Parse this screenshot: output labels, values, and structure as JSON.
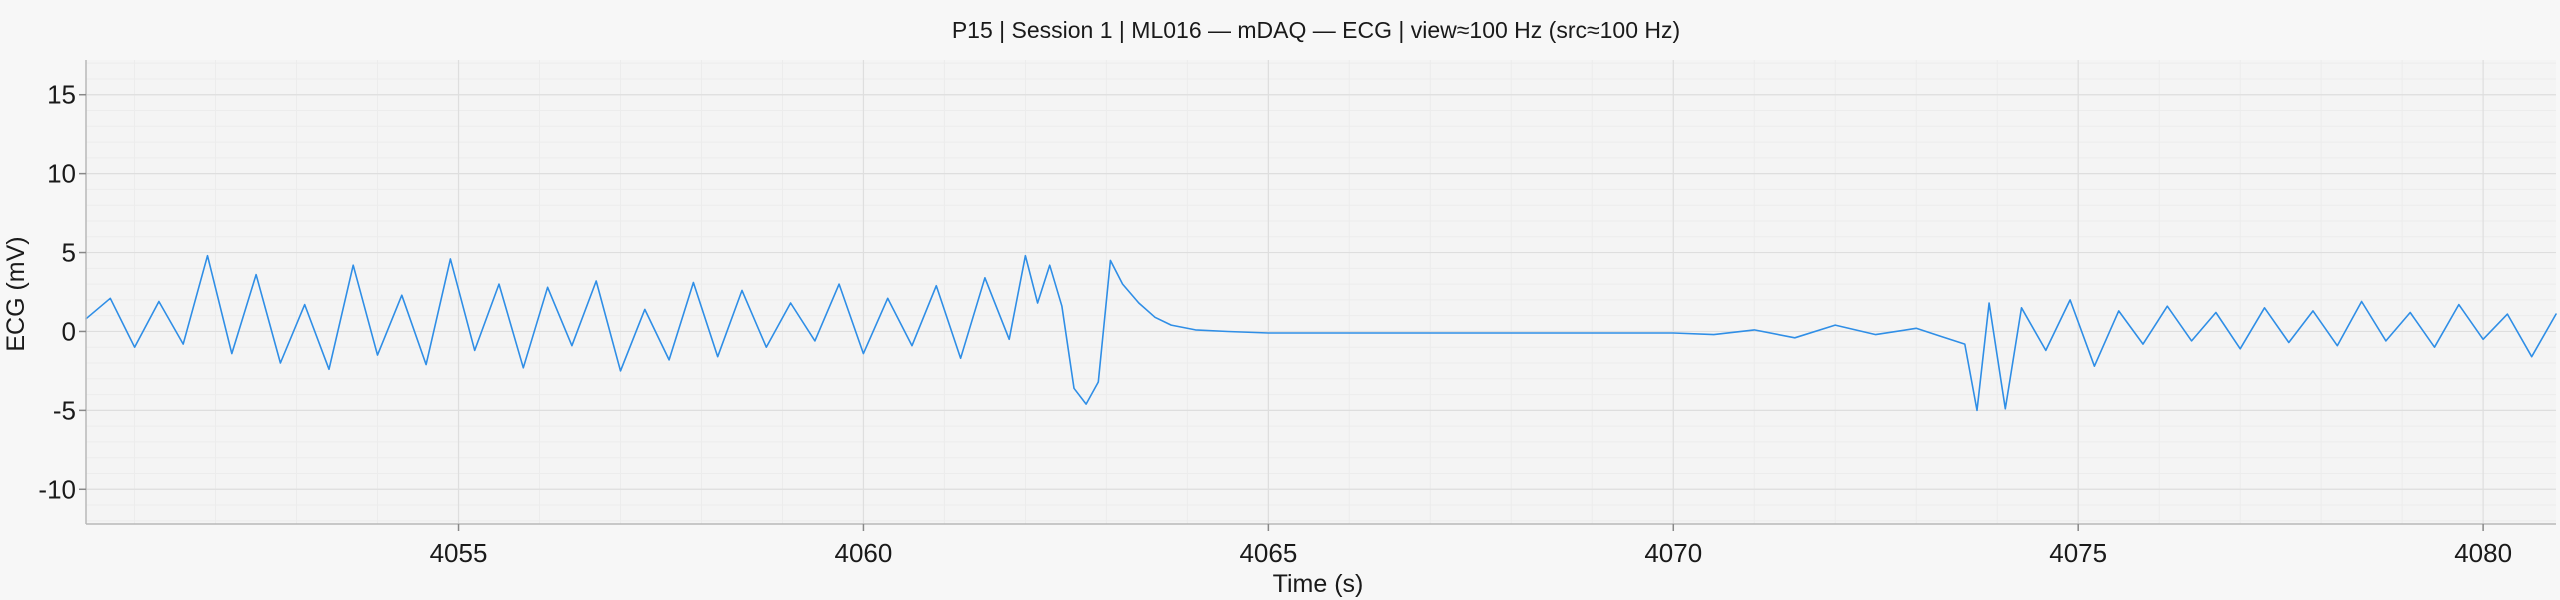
{
  "chart_data": {
    "type": "line",
    "title": "P15 | Session 1 | ML016 — mDAQ — ECG | view≈100 Hz (src≈100 Hz)",
    "xlabel": "Time (s)",
    "ylabel": "ECG (mV)",
    "xlim": [
      4050.4,
      4080.9
    ],
    "ylim": [
      -12.2,
      17.2
    ],
    "x_ticks": [
      4055,
      4060,
      4065,
      4070,
      4075,
      4080
    ],
    "y_ticks": [
      -10,
      -5,
      0,
      5,
      10,
      15
    ],
    "grid": true,
    "legend": "none",
    "sample_rate_hz": 100,
    "series": [
      {
        "color": "#2f8ee6",
        "x": [
          4050.4,
          4050.7,
          4051.0,
          4051.3,
          4051.6,
          4051.9,
          4052.2,
          4052.5,
          4052.8,
          4053.1,
          4053.4,
          4053.7,
          4054.0,
          4054.3,
          4054.6,
          4054.9,
          4055.2,
          4055.5,
          4055.8,
          4056.1,
          4056.4,
          4056.7,
          4057.0,
          4057.3,
          4057.6,
          4057.9,
          4058.2,
          4058.5,
          4058.8,
          4059.1,
          4059.4,
          4059.7,
          4060.0,
          4060.3,
          4060.6,
          4060.9,
          4061.2,
          4061.5,
          4061.8,
          4062.0,
          4062.15,
          4062.3,
          4062.45,
          4062.6,
          4062.75,
          4062.9,
          4063.05,
          4063.2,
          4063.4,
          4063.6,
          4063.8,
          4064.1,
          4064.5,
          4065.0,
          4066.0,
          4067.0,
          4068.0,
          4069.0,
          4070.0,
          4070.5,
          4071.0,
          4071.5,
          4072.0,
          4072.5,
          4073.0,
          4073.3,
          4073.6,
          4073.75,
          4073.9,
          4074.1,
          4074.3,
          4074.6,
          4074.9,
          4075.2,
          4075.5,
          4075.8,
          4076.1,
          4076.4,
          4076.7,
          4077.0,
          4077.3,
          4077.6,
          4077.9,
          4078.2,
          4078.5,
          4078.8,
          4079.1,
          4079.4,
          4079.7,
          4080.0,
          4080.3,
          4080.6,
          4080.9
        ],
        "values": [
          0.8,
          2.1,
          -1.0,
          1.9,
          -0.8,
          4.8,
          -1.4,
          3.6,
          -2.0,
          1.7,
          -2.4,
          4.2,
          -1.5,
          2.3,
          -2.1,
          4.6,
          -1.2,
          3.0,
          -2.3,
          2.8,
          -0.9,
          3.2,
          -2.5,
          1.4,
          -1.8,
          3.1,
          -1.6,
          2.6,
          -1.0,
          1.8,
          -0.6,
          3.0,
          -1.4,
          2.1,
          -0.9,
          2.9,
          -1.7,
          3.4,
          -0.5,
          4.8,
          1.8,
          4.2,
          1.6,
          -3.6,
          -4.6,
          -3.2,
          4.5,
          3.0,
          1.8,
          0.9,
          0.4,
          0.1,
          0.0,
          -0.1,
          -0.1,
          -0.1,
          -0.1,
          -0.1,
          -0.1,
          -0.2,
          0.1,
          -0.4,
          0.4,
          -0.2,
          0.2,
          -0.3,
          -0.8,
          -5.0,
          1.8,
          -4.9,
          1.5,
          -1.2,
          2.0,
          -2.2,
          1.3,
          -0.8,
          1.6,
          -0.6,
          1.2,
          -1.1,
          1.5,
          -0.7,
          1.3,
          -0.9,
          1.9,
          -0.6,
          1.2,
          -1.0,
          1.7,
          -0.5,
          1.1,
          -1.6,
          1.1
        ]
      }
    ]
  }
}
